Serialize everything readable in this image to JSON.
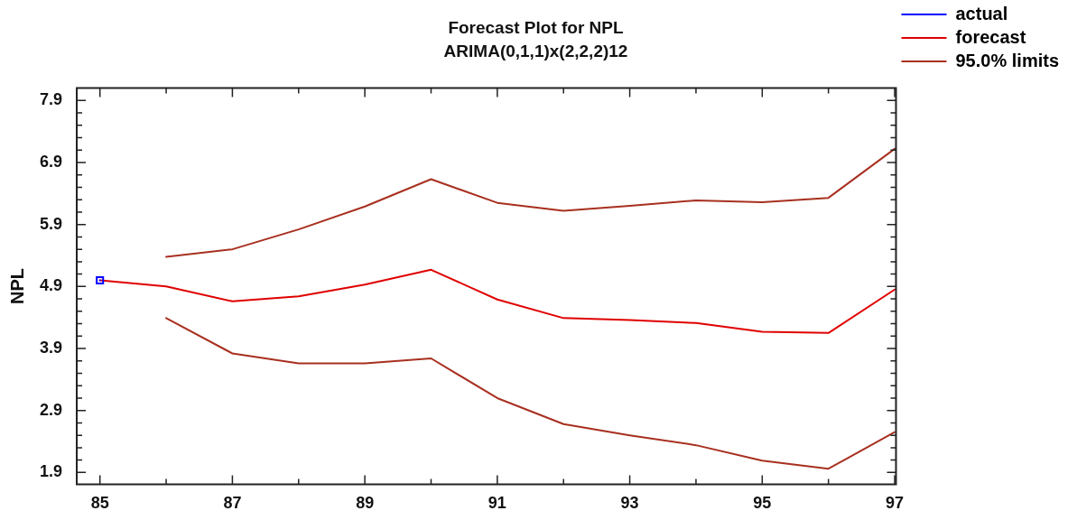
{
  "chart_data": {
    "type": "line",
    "title": "Forecast Plot for NPL",
    "subtitle": "ARIMA(0,1,1)x(2,2,2)12",
    "ylabel": "NPL",
    "xlim": [
      84.65,
      97.02
    ],
    "xticks": [
      85,
      {
        "value": 86,
        "label": null
      },
      87,
      {
        "value": 88,
        "label": null
      },
      89,
      {
        "value": 90,
        "label": null
      },
      91,
      {
        "value": 92,
        "label": null
      },
      93,
      {
        "value": 94,
        "label": null
      },
      95,
      {
        "value": 96,
        "label": null
      },
      97
    ],
    "ylim": [
      1.71,
      8.1
    ],
    "yticks": [
      1.9,
      {
        "value": 2.1,
        "label": null
      },
      {
        "value": 2.3,
        "label": null
      },
      {
        "value": 2.5,
        "label": null
      },
      {
        "value": 2.7,
        "label": null
      },
      2.9,
      {
        "value": 3.1,
        "label": null
      },
      {
        "value": 3.3,
        "label": null
      },
      {
        "value": 3.5,
        "label": null
      },
      {
        "value": 3.7,
        "label": null
      },
      3.9,
      {
        "value": 4.1,
        "label": null
      },
      {
        "value": 4.3,
        "label": null
      },
      {
        "value": 4.5,
        "label": null
      },
      {
        "value": 4.7,
        "label": null
      },
      4.9,
      {
        "value": 5.1,
        "label": null
      },
      {
        "value": 5.3,
        "label": null
      },
      {
        "value": 5.5,
        "label": null
      },
      {
        "value": 5.7,
        "label": null
      },
      5.9,
      {
        "value": 6.1,
        "label": null
      },
      {
        "value": 6.3,
        "label": null
      },
      {
        "value": 6.5,
        "label": null
      },
      {
        "value": 6.7,
        "label": null
      },
      6.9,
      {
        "value": 7.1,
        "label": null
      },
      {
        "value": 7.3,
        "label": null
      },
      {
        "value": 7.5,
        "label": null
      },
      {
        "value": 7.7,
        "label": null
      },
      7.9
    ],
    "grid": false,
    "legend": "top right",
    "line_style": "solid",
    "series": [
      {
        "name": "actual",
        "color": "#0000ff",
        "marker": "square",
        "x": [
          85
        ],
        "values": [
          5.0
        ]
      },
      {
        "name": "forecast",
        "color": "#e00000",
        "marker": "none",
        "x": [
          85,
          86,
          87,
          88,
          89,
          90,
          91,
          92,
          93,
          94,
          95,
          96,
          97
        ],
        "values": [
          5.0,
          4.9,
          4.66,
          4.74,
          4.93,
          5.17,
          4.69,
          4.39,
          4.36,
          4.31,
          4.17,
          4.15,
          4.85
        ]
      },
      {
        "name": "95.0% limits",
        "color": "#a83020",
        "marker": "none",
        "x": [
          86,
          87,
          88,
          89,
          90,
          91,
          92,
          93,
          94,
          95,
          96,
          97
        ],
        "values": [
          5.38,
          5.5,
          5.82,
          6.19,
          6.63,
          6.25,
          6.12,
          6.2,
          6.29,
          6.26,
          6.33,
          7.12
        ]
      },
      {
        "color": "#a83020",
        "marker": "none",
        "x": [
          86,
          87,
          88,
          89,
          90,
          91,
          92,
          93,
          94,
          95,
          96,
          97
        ],
        "values": [
          4.39,
          3.82,
          3.66,
          3.66,
          3.74,
          3.1,
          2.68,
          2.5,
          2.34,
          2.09,
          1.96,
          2.55
        ]
      }
    ]
  }
}
